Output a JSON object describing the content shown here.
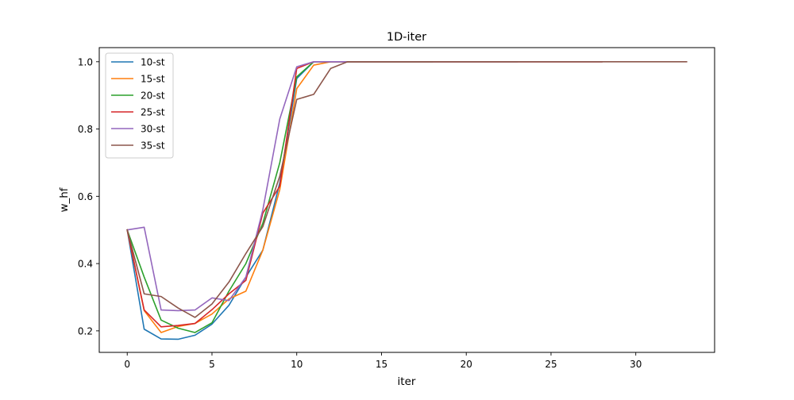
{
  "chart_data": {
    "type": "line",
    "title": "1D-iter",
    "xlabel": "iter",
    "ylabel": "w_hf",
    "xlim": [
      -1.65,
      34.65
    ],
    "ylim": [
      0.136,
      1.042
    ],
    "xticks": [
      0,
      5,
      10,
      15,
      20,
      25,
      30
    ],
    "xtick_labels": [
      "0",
      "5",
      "10",
      "15",
      "20",
      "25",
      "30"
    ],
    "yticks": [
      0.2,
      0.4,
      0.6,
      0.8,
      1.0
    ],
    "ytick_labels": [
      "0.2",
      "0.4",
      "0.6",
      "0.8",
      "1.0"
    ],
    "grid": false,
    "legend_position": "top-left",
    "series": [
      {
        "name": "10-st",
        "color": "#1f77b4",
        "x": [
          0,
          1,
          2,
          3,
          4,
          5,
          6,
          7,
          8,
          9,
          10,
          11,
          12,
          13,
          14,
          15,
          16,
          17,
          18,
          19,
          20,
          21,
          22,
          23
        ],
        "y": [
          0.5,
          0.205,
          0.176,
          0.175,
          0.187,
          0.22,
          0.276,
          0.36,
          0.44,
          0.64,
          0.95,
          1.0,
          1.0,
          1.0,
          1.0,
          1.0,
          1.0,
          1.0,
          1.0,
          1.0,
          1.0,
          1.0,
          1.0,
          1.0
        ]
      },
      {
        "name": "15-st",
        "color": "#ff7f0e",
        "x": [
          0,
          1,
          2,
          3,
          4,
          5,
          6,
          7,
          8,
          9,
          10,
          11,
          12,
          13,
          14,
          15,
          16,
          17,
          18,
          19,
          20,
          21,
          22,
          23,
          24,
          25,
          26,
          27,
          28
        ],
        "y": [
          0.5,
          0.26,
          0.195,
          0.213,
          0.222,
          0.25,
          0.295,
          0.318,
          0.44,
          0.62,
          0.92,
          0.99,
          1.0,
          1.0,
          1.0,
          1.0,
          1.0,
          1.0,
          1.0,
          1.0,
          1.0,
          1.0,
          1.0,
          1.0,
          1.0,
          1.0,
          1.0,
          1.0,
          1.0
        ]
      },
      {
        "name": "20-st",
        "color": "#2ca02c",
        "x": [
          0,
          1,
          2,
          3,
          4,
          5,
          6,
          7,
          8,
          9,
          10,
          11,
          12,
          13,
          14,
          15,
          16,
          17,
          18
        ],
        "y": [
          0.5,
          0.36,
          0.232,
          0.208,
          0.195,
          0.224,
          0.318,
          0.4,
          0.52,
          0.7,
          0.955,
          1.0,
          1.0,
          1.0,
          1.0,
          1.0,
          1.0,
          1.0,
          1.0
        ]
      },
      {
        "name": "25-st",
        "color": "#d62728",
        "x": [
          0,
          1,
          2,
          3,
          4,
          5,
          6,
          7,
          8,
          9,
          10,
          11,
          12,
          13,
          14,
          15,
          16,
          17,
          18,
          19,
          20,
          21,
          22,
          23,
          24,
          25,
          26,
          27,
          28
        ],
        "y": [
          0.5,
          0.262,
          0.212,
          0.216,
          0.222,
          0.263,
          0.31,
          0.35,
          0.55,
          0.63,
          0.98,
          1.0,
          1.0,
          1.0,
          1.0,
          1.0,
          1.0,
          1.0,
          1.0,
          1.0,
          1.0,
          1.0,
          1.0,
          1.0,
          1.0,
          1.0,
          1.0,
          1.0,
          1.0
        ]
      },
      {
        "name": "30-st",
        "color": "#9467bd",
        "x": [
          0,
          1,
          2,
          3,
          4,
          5,
          6,
          7,
          8,
          9,
          10,
          11,
          12,
          13,
          14,
          15,
          16,
          17,
          18,
          19,
          20,
          21,
          22,
          23,
          24,
          25,
          26,
          27,
          28
        ],
        "y": [
          0.5,
          0.508,
          0.262,
          0.26,
          0.262,
          0.298,
          0.29,
          0.36,
          0.56,
          0.83,
          0.985,
          1.0,
          1.0,
          1.0,
          1.0,
          1.0,
          1.0,
          1.0,
          1.0,
          1.0,
          1.0,
          1.0,
          1.0,
          1.0,
          1.0,
          1.0,
          1.0,
          1.0,
          1.0
        ]
      },
      {
        "name": "35-st",
        "color": "#8c564b",
        "x": [
          0,
          1,
          2,
          3,
          4,
          5,
          6,
          7,
          8,
          9,
          10,
          11,
          12,
          13,
          14,
          15,
          16,
          17,
          18,
          19,
          20,
          21,
          22,
          23,
          24,
          25,
          26,
          27,
          28,
          29,
          30,
          31,
          32,
          33
        ],
        "y": [
          0.5,
          0.31,
          0.302,
          0.268,
          0.24,
          0.28,
          0.345,
          0.43,
          0.51,
          0.66,
          0.888,
          0.903,
          0.98,
          1.0,
          1.0,
          1.0,
          1.0,
          1.0,
          1.0,
          1.0,
          1.0,
          1.0,
          1.0,
          1.0,
          1.0,
          1.0,
          1.0,
          1.0,
          1.0,
          1.0,
          1.0,
          1.0,
          1.0,
          1.0
        ]
      }
    ]
  }
}
